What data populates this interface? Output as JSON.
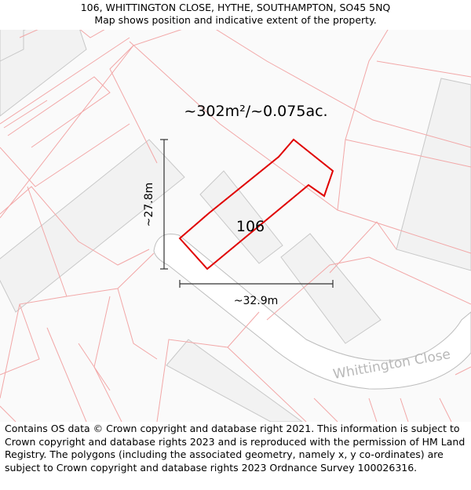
{
  "header": {
    "address": "106, WHITTINGTON CLOSE, HYTHE, SOUTHAMPTON, SO45 5NQ",
    "subtitle": "Map shows position and indicative extent of the property."
  },
  "map": {
    "area_label": "~302m²/~0.075ac.",
    "house_number": "106",
    "height_label": "~27.8m",
    "width_label": "~32.9m",
    "street_name": "Whittington Close",
    "colors": {
      "boundary": "#e00000",
      "plot_lines": "#f2a7a7",
      "building_fill": "#f2f2f2",
      "building_stroke": "#c8c8c8",
      "road_edge": "#bdbdbd",
      "measure": "#333333"
    }
  },
  "footer": {
    "copyright": "Contains OS data © Crown copyright and database right 2021. This information is subject to Crown copyright and database rights 2023 and is reproduced with the permission of HM Land Registry. The polygons (including the associated geometry, namely x, y co-ordinates) are subject to Crown copyright and database rights 2023 Ordnance Survey 100026316."
  }
}
